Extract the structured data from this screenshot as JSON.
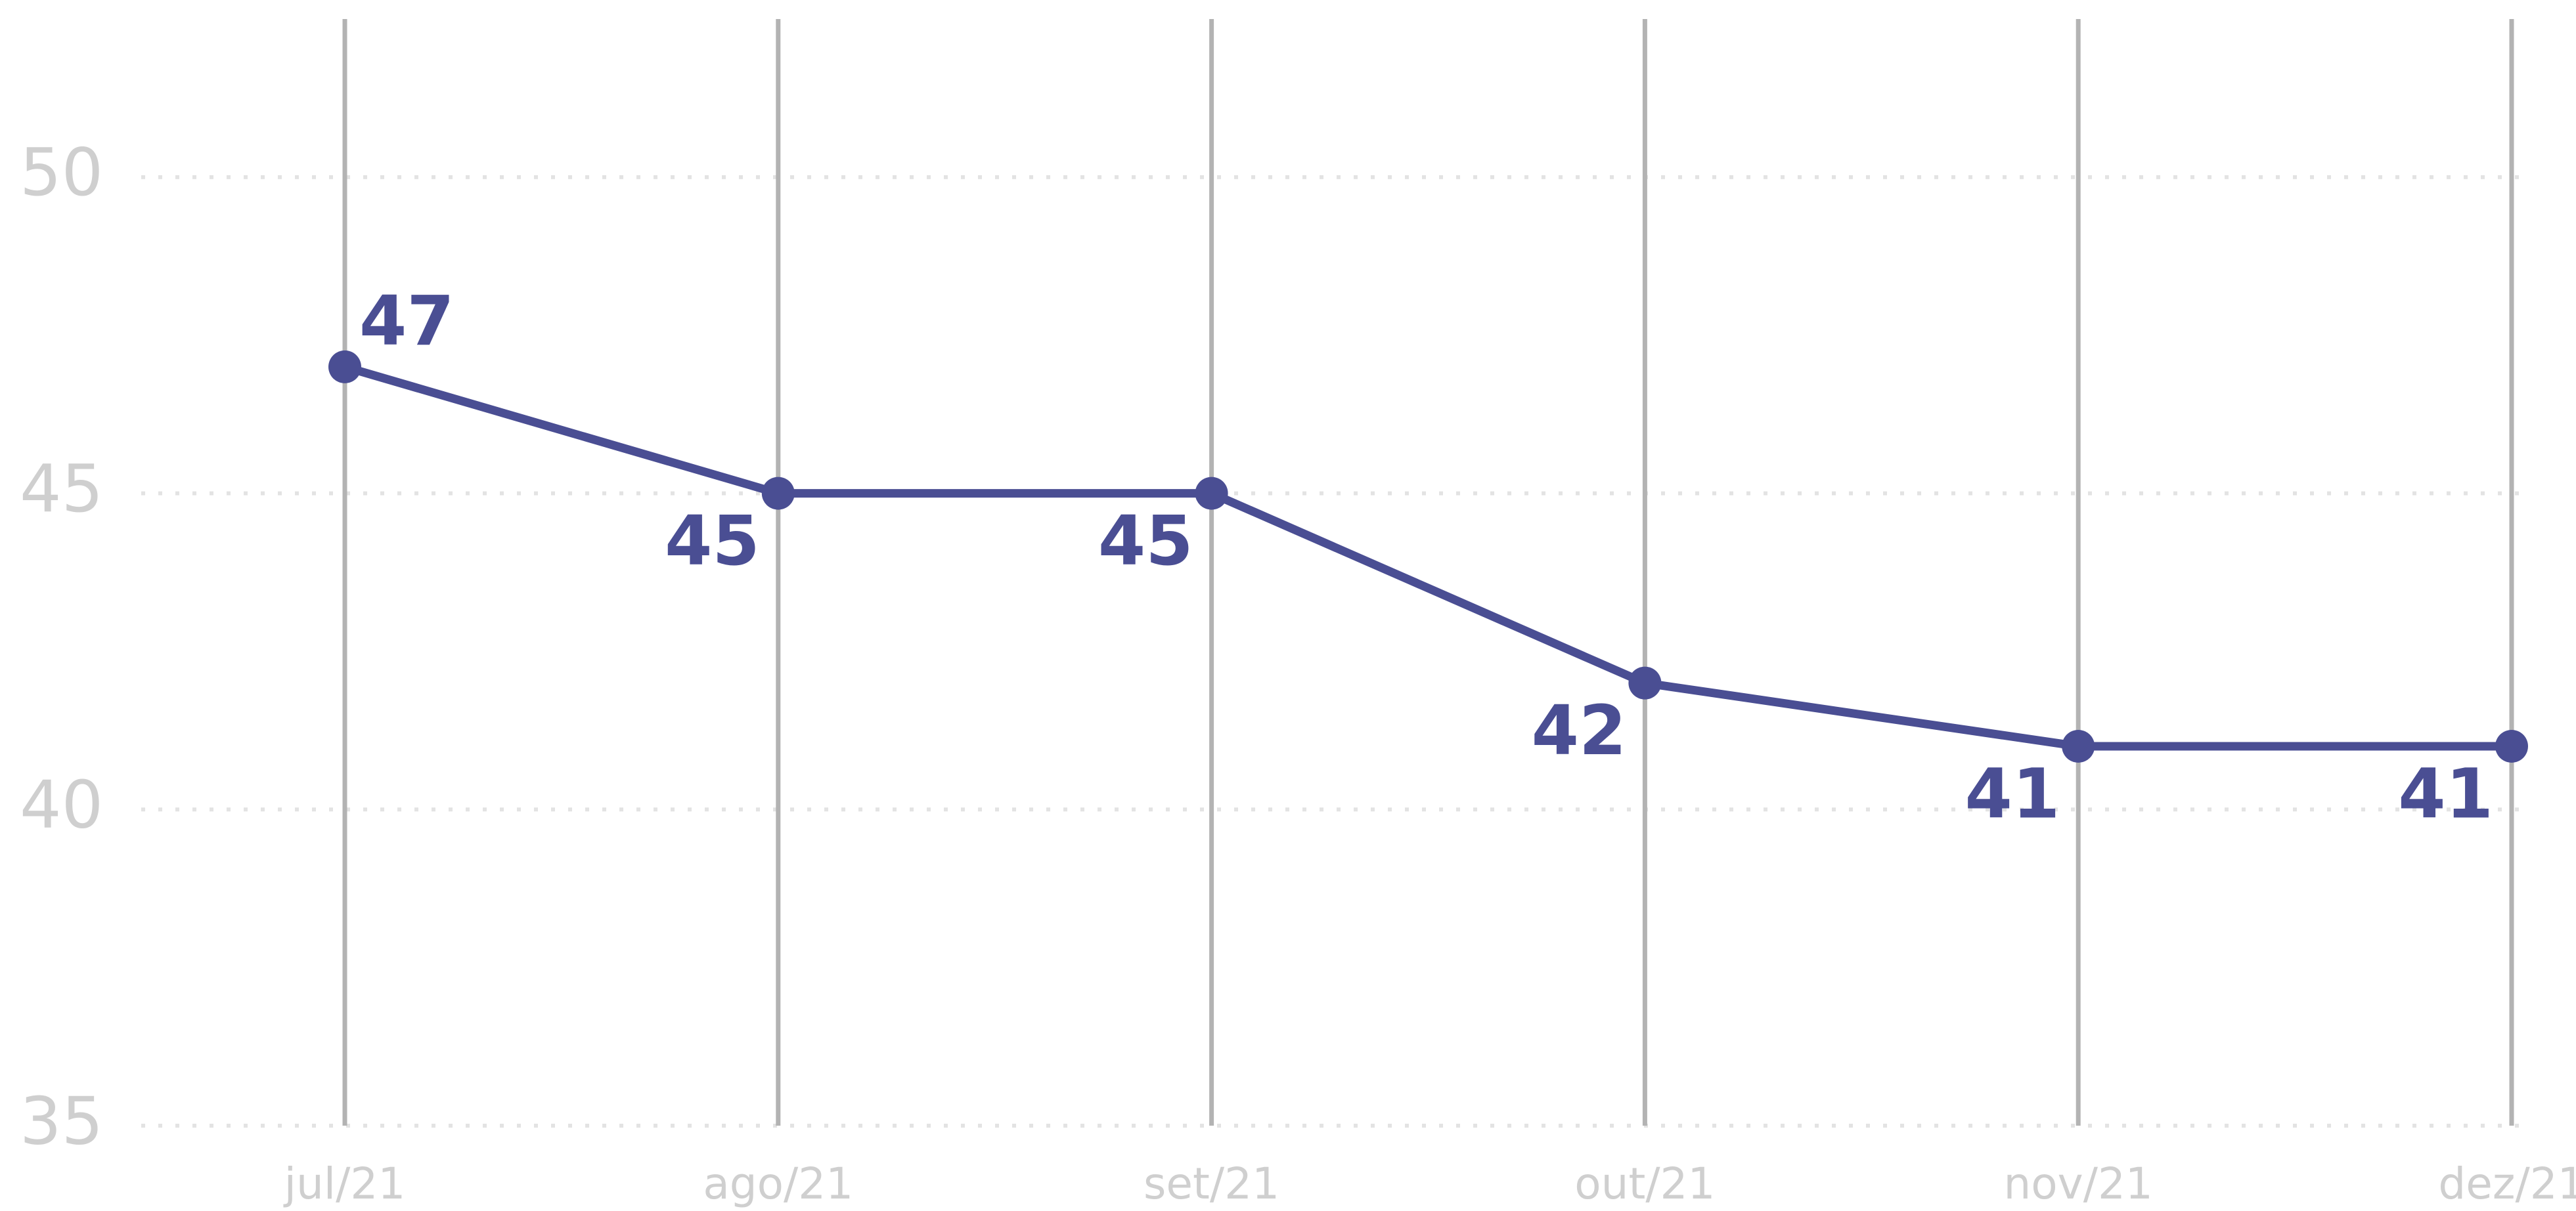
{
  "chart_data": {
    "type": "line",
    "categories": [
      "jul/21",
      "ago/21",
      "set/21",
      "out/21",
      "nov/21",
      "dez/21"
    ],
    "series": [
      {
        "name": null,
        "color": "#4a4e93",
        "values": [
          47,
          45,
          45,
          42,
          41,
          41
        ]
      }
    ],
    "ylim": [
      35,
      52.5
    ],
    "yticks": [
      35,
      40,
      45,
      50
    ],
    "grid": true
  }
}
